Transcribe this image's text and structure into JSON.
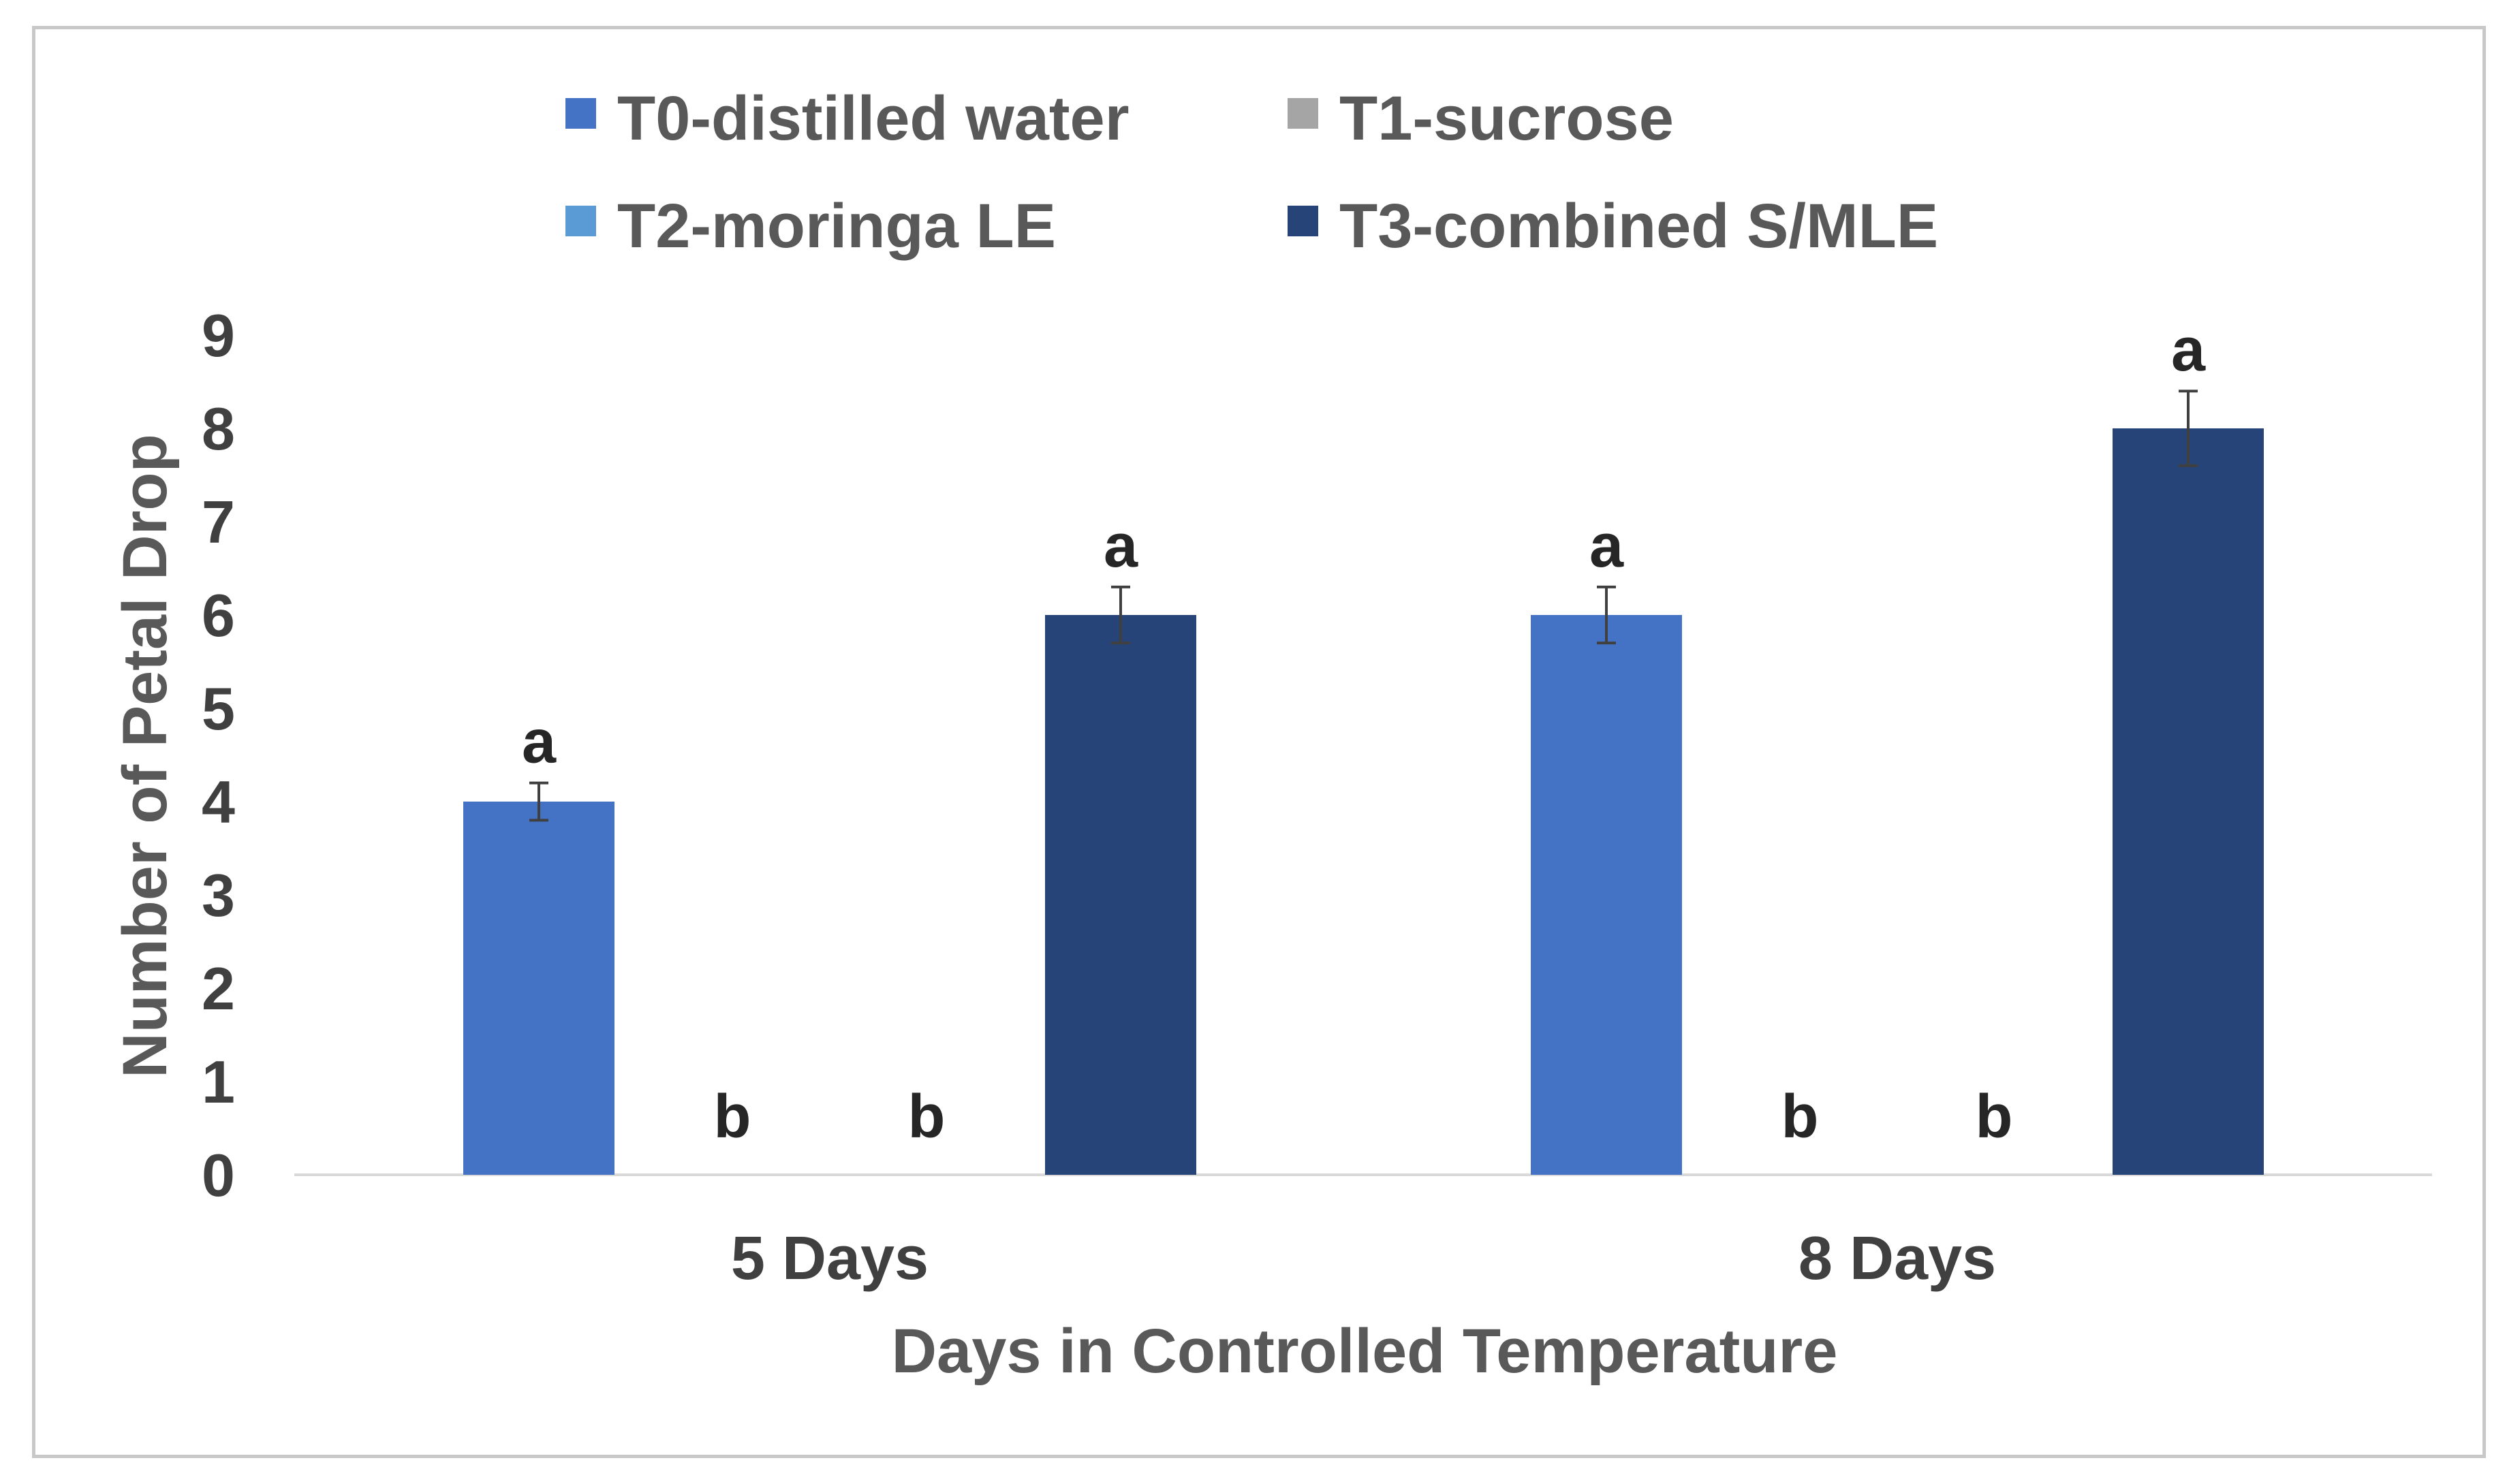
{
  "chart_data": {
    "type": "bar",
    "categories": [
      "5 Days",
      "8 Days"
    ],
    "series": [
      {
        "name": "T0-distilled water",
        "color": "#4472c4",
        "values": [
          4,
          6
        ],
        "errors": [
          0.2,
          0.3
        ],
        "labels": [
          "a",
          "a"
        ]
      },
      {
        "name": "T1-sucrose",
        "color": "#a5a5a5",
        "values": [
          0,
          0
        ],
        "errors": [
          0,
          0
        ],
        "labels": [
          "b",
          "b"
        ]
      },
      {
        "name": "T2-moringa LE",
        "color": "#5b9bd5",
        "values": [
          0,
          0
        ],
        "errors": [
          0,
          0
        ],
        "labels": [
          "b",
          "b"
        ]
      },
      {
        "name": "T3-combined S/MLE",
        "color": "#264478",
        "values": [
          6,
          8
        ],
        "errors": [
          0.3,
          0.4
        ],
        "labels": [
          "a",
          "a"
        ]
      }
    ],
    "xlabel": "Days in Controlled Temperature",
    "ylabel": "Number of Petal Drop",
    "ylim": [
      0,
      9
    ],
    "yticks": [
      0,
      1,
      2,
      3,
      4,
      5,
      6,
      7,
      8,
      9
    ],
    "grid": false,
    "legend": "top"
  }
}
